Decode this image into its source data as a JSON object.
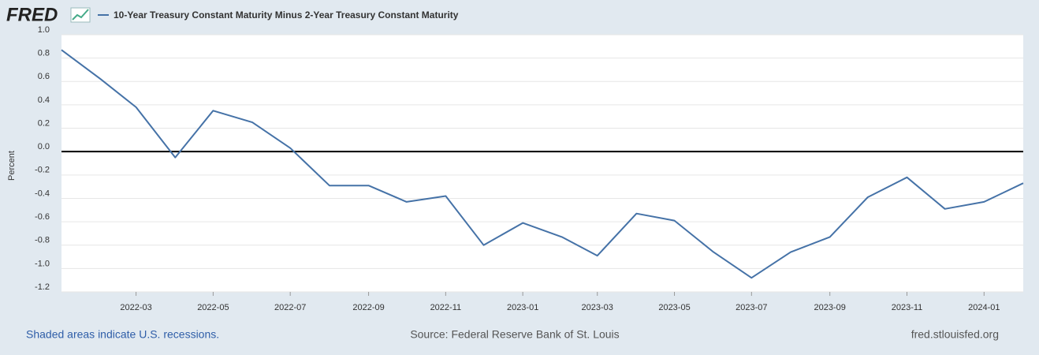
{
  "brand": "FRED",
  "footer": {
    "left": "Shaded areas indicate U.S. recessions.",
    "center": "Source: Federal Reserve Bank of St. Louis",
    "right": "fred.stlouisfed.org"
  },
  "chart_data": {
    "type": "line",
    "y_label": "Percent",
    "x": [
      "2022-01",
      "2022-02",
      "2022-03",
      "2022-04",
      "2022-05",
      "2022-06",
      "2022-07",
      "2022-08",
      "2022-09",
      "2022-10",
      "2022-11",
      "2022-12",
      "2023-01",
      "2023-02",
      "2023-03",
      "2023-04",
      "2023-05",
      "2023-06",
      "2023-07",
      "2023-08",
      "2023-09",
      "2023-10",
      "2023-11",
      "2023-12",
      "2024-01",
      "2024-02"
    ],
    "series": [
      {
        "name": "10-Year Treasury Constant Maturity Minus 2-Year Treasury Constant Maturity",
        "color": "#4572a7",
        "values": [
          0.87,
          0.62,
          0.38,
          -0.05,
          0.35,
          0.25,
          0.03,
          -0.29,
          -0.29,
          -0.43,
          -0.38,
          -0.8,
          -0.61,
          -0.73,
          -0.89,
          -0.53,
          -0.59,
          -0.86,
          -1.08,
          -0.86,
          -0.73,
          -0.39,
          -0.22,
          -0.49,
          -0.43,
          -0.27
        ]
      }
    ],
    "xlim": [
      "2022-01",
      "2024-02"
    ],
    "xticks": [
      "2022-03",
      "2022-05",
      "2022-07",
      "2022-09",
      "2022-11",
      "2023-01",
      "2023-03",
      "2023-05",
      "2023-07",
      "2023-09",
      "2023-11",
      "2024-01"
    ],
    "ylim": [
      -1.2,
      1.0
    ],
    "yticks": [
      {
        "value": 1,
        "label": "1.0"
      },
      0.8,
      0.6,
      0.4,
      0.2,
      {
        "value": 0,
        "label": "0.0"
      },
      -0.2,
      -0.4,
      -0.6,
      -0.8,
      {
        "value": -1,
        "label": "-1.0"
      },
      -1.2
    ],
    "grid": true
  }
}
